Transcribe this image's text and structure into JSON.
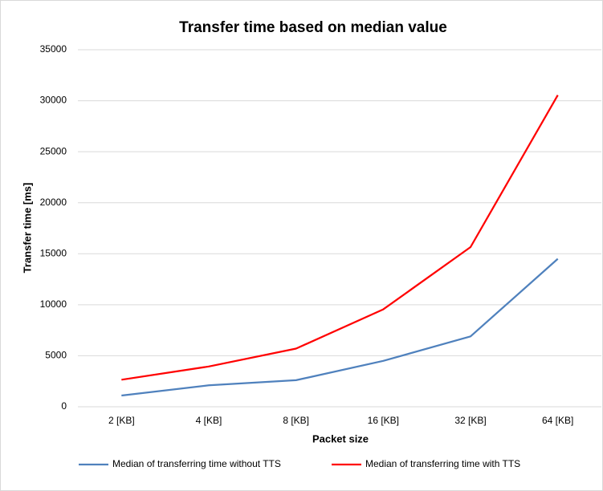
{
  "chart_data": {
    "type": "line",
    "title": "Transfer time based on median value",
    "x_label": "Packet size",
    "y_label": "Transfer time [ms]",
    "categories": [
      "2 [KB]",
      "4 [KB]",
      "8 [KB]",
      "16 [KB]",
      "32 [KB]",
      "64 [KB]"
    ],
    "series": [
      {
        "name": "Median of transferring time without TTS",
        "color": "#4f81bd",
        "values": [
          1100,
          2100,
          2600,
          4500,
          6900,
          14500
        ]
      },
      {
        "name": "Median of transferring time with TTS",
        "color": "#ff0000",
        "values": [
          2650,
          3950,
          5700,
          9550,
          15650,
          30550
        ]
      }
    ],
    "ylim": [
      0,
      35000
    ],
    "yticks": [
      0,
      5000,
      10000,
      15000,
      20000,
      25000,
      30000,
      35000
    ],
    "grid": true,
    "legend": "bottom"
  }
}
